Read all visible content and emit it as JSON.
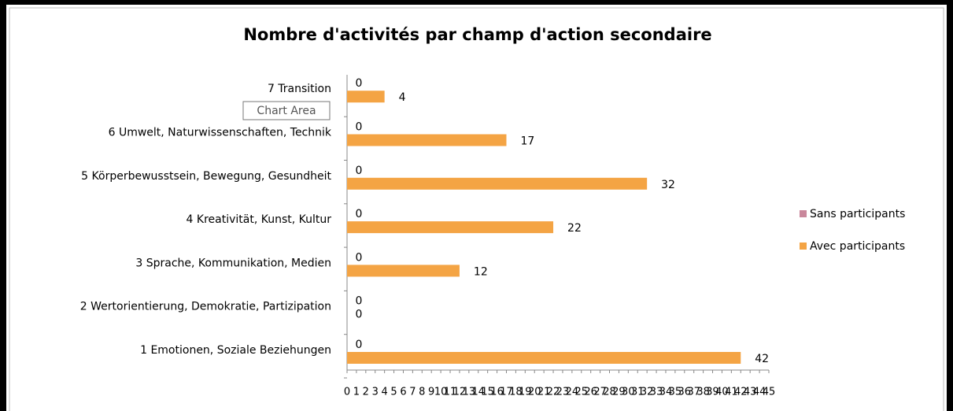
{
  "chart_data": {
    "type": "hbar",
    "title": "Nombre d'activités par champ d'action secondaire",
    "categories": [
      "1 Emotionen, Soziale Beziehungen",
      "2 Wertorientierung, Demokratie,  Partizipation",
      "3 Sprache, Kommunikation, Medien",
      "4 Kreativität, Kunst, Kultur",
      "5 Körperbewusstsein, Bewegung, Gesundheit",
      "6 Umwelt, Naturwissenschaften, Technik",
      "7 Transition"
    ],
    "series": [
      {
        "name": "Sans participants",
        "color": "#c9879b",
        "values": [
          0,
          0,
          0,
          0,
          0,
          0,
          0
        ]
      },
      {
        "name": "Avec participants",
        "color": "#f4a444",
        "values": [
          42,
          0,
          12,
          22,
          32,
          17,
          4
        ]
      }
    ],
    "xlim": [
      0,
      45
    ],
    "xticks": [
      0,
      1,
      2,
      3,
      4,
      5,
      6,
      7,
      8,
      9,
      10,
      11,
      12,
      13,
      14,
      15,
      16,
      17,
      18,
      19,
      20,
      21,
      22,
      23,
      24,
      25,
      26,
      27,
      28,
      29,
      30,
      31,
      32,
      33,
      34,
      35,
      36,
      37,
      38,
      39,
      40,
      41,
      42,
      43,
      44,
      45
    ],
    "legend": "right",
    "tooltip": "Chart Area"
  }
}
